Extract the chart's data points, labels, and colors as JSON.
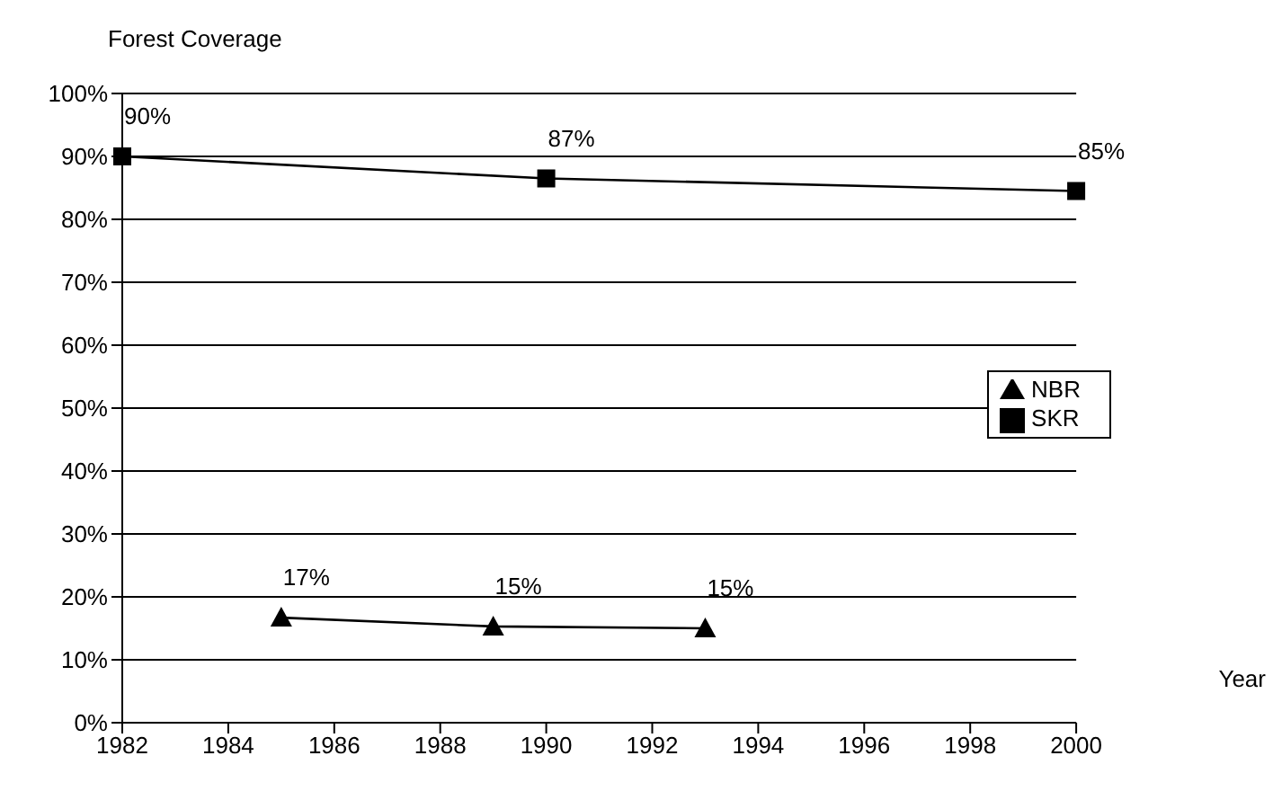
{
  "chart_data": {
    "type": "line",
    "title": "Forest Coverage",
    "xlabel": "Year",
    "xlim": [
      1982,
      2000
    ],
    "xticks": [
      1982,
      1984,
      1986,
      1988,
      1990,
      1992,
      1994,
      1996,
      1998,
      2000
    ],
    "ylim": [
      0,
      100
    ],
    "yticks": [
      {
        "value": 0,
        "label": "0%"
      },
      {
        "value": 10,
        "label": "10%"
      },
      {
        "value": 20,
        "label": "20%"
      },
      {
        "value": 30,
        "label": "30%"
      },
      {
        "value": 40,
        "label": "40%"
      },
      {
        "value": 50,
        "label": "50%"
      },
      {
        "value": 60,
        "label": "60%"
      },
      {
        "value": 70,
        "label": "70%"
      },
      {
        "value": 80,
        "label": "80%"
      },
      {
        "value": 90,
        "label": "90%"
      },
      {
        "value": 100,
        "label": "100%"
      }
    ],
    "grid": "y",
    "legend": "right",
    "series": [
      {
        "name": "NBR",
        "color": "#000000",
        "marker": "triangle",
        "x": [
          1985,
          1989,
          1993
        ],
        "values": [
          16.7,
          15.3,
          15.0
        ],
        "value_labels": [
          "17%",
          "15%",
          "15%"
        ]
      },
      {
        "name": "SKR",
        "color": "#000000",
        "marker": "square",
        "x": [
          1982,
          1990,
          2000
        ],
        "values": [
          90,
          86.5,
          84.5
        ],
        "value_labels": [
          "90%",
          "87%",
          "85%"
        ]
      }
    ]
  }
}
